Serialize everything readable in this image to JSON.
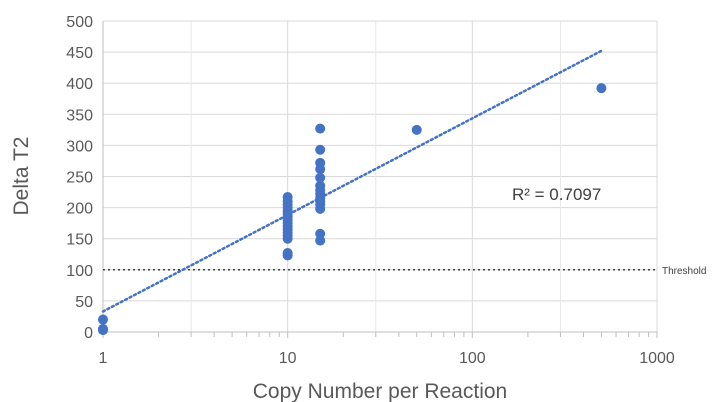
{
  "chart_data": {
    "type": "scatter",
    "title": "",
    "xlabel": "Copy Number per Reaction",
    "ylabel": "Delta T2",
    "x_scale": "log",
    "xlim": [
      1,
      1000
    ],
    "ylim": [
      0,
      500
    ],
    "y_ticks": [
      0,
      50,
      100,
      150,
      200,
      250,
      300,
      350,
      400,
      450,
      500
    ],
    "x_ticks": [
      1,
      10,
      100,
      1000
    ],
    "x_tick_labels": [
      "1",
      "10",
      "100",
      "1000"
    ],
    "grid": true,
    "marker_color": "#4472C4",
    "points": [
      {
        "x": 1,
        "y": 20
      },
      {
        "x": 1,
        "y": 5
      },
      {
        "x": 1,
        "y": 3
      },
      {
        "x": 10,
        "y": 217
      },
      {
        "x": 10,
        "y": 210
      },
      {
        "x": 10,
        "y": 205
      },
      {
        "x": 10,
        "y": 200
      },
      {
        "x": 10,
        "y": 195
      },
      {
        "x": 10,
        "y": 190
      },
      {
        "x": 10,
        "y": 185
      },
      {
        "x": 10,
        "y": 180
      },
      {
        "x": 10,
        "y": 175
      },
      {
        "x": 10,
        "y": 170
      },
      {
        "x": 10,
        "y": 165
      },
      {
        "x": 10,
        "y": 160
      },
      {
        "x": 10,
        "y": 155
      },
      {
        "x": 10,
        "y": 150
      },
      {
        "x": 10,
        "y": 127
      },
      {
        "x": 10,
        "y": 123
      },
      {
        "x": 15,
        "y": 327
      },
      {
        "x": 15,
        "y": 293
      },
      {
        "x": 15,
        "y": 272
      },
      {
        "x": 15,
        "y": 262
      },
      {
        "x": 15,
        "y": 248
      },
      {
        "x": 15,
        "y": 235
      },
      {
        "x": 15,
        "y": 228
      },
      {
        "x": 15,
        "y": 222
      },
      {
        "x": 15,
        "y": 215
      },
      {
        "x": 15,
        "y": 210
      },
      {
        "x": 15,
        "y": 205
      },
      {
        "x": 15,
        "y": 198
      },
      {
        "x": 15,
        "y": 158
      },
      {
        "x": 15,
        "y": 147
      },
      {
        "x": 50,
        "y": 325
      },
      {
        "x": 500,
        "y": 392
      }
    ],
    "trendline": {
      "type": "logarithmic",
      "style": "dotted",
      "color": "#4472C4",
      "x_start": 1,
      "y_start": 33,
      "x_end": 500,
      "y_end": 452,
      "r_squared_label": "R² = 0.7097"
    },
    "threshold": {
      "value": 100,
      "label": "Threshold",
      "color": "#404040",
      "style": "dotted"
    }
  }
}
